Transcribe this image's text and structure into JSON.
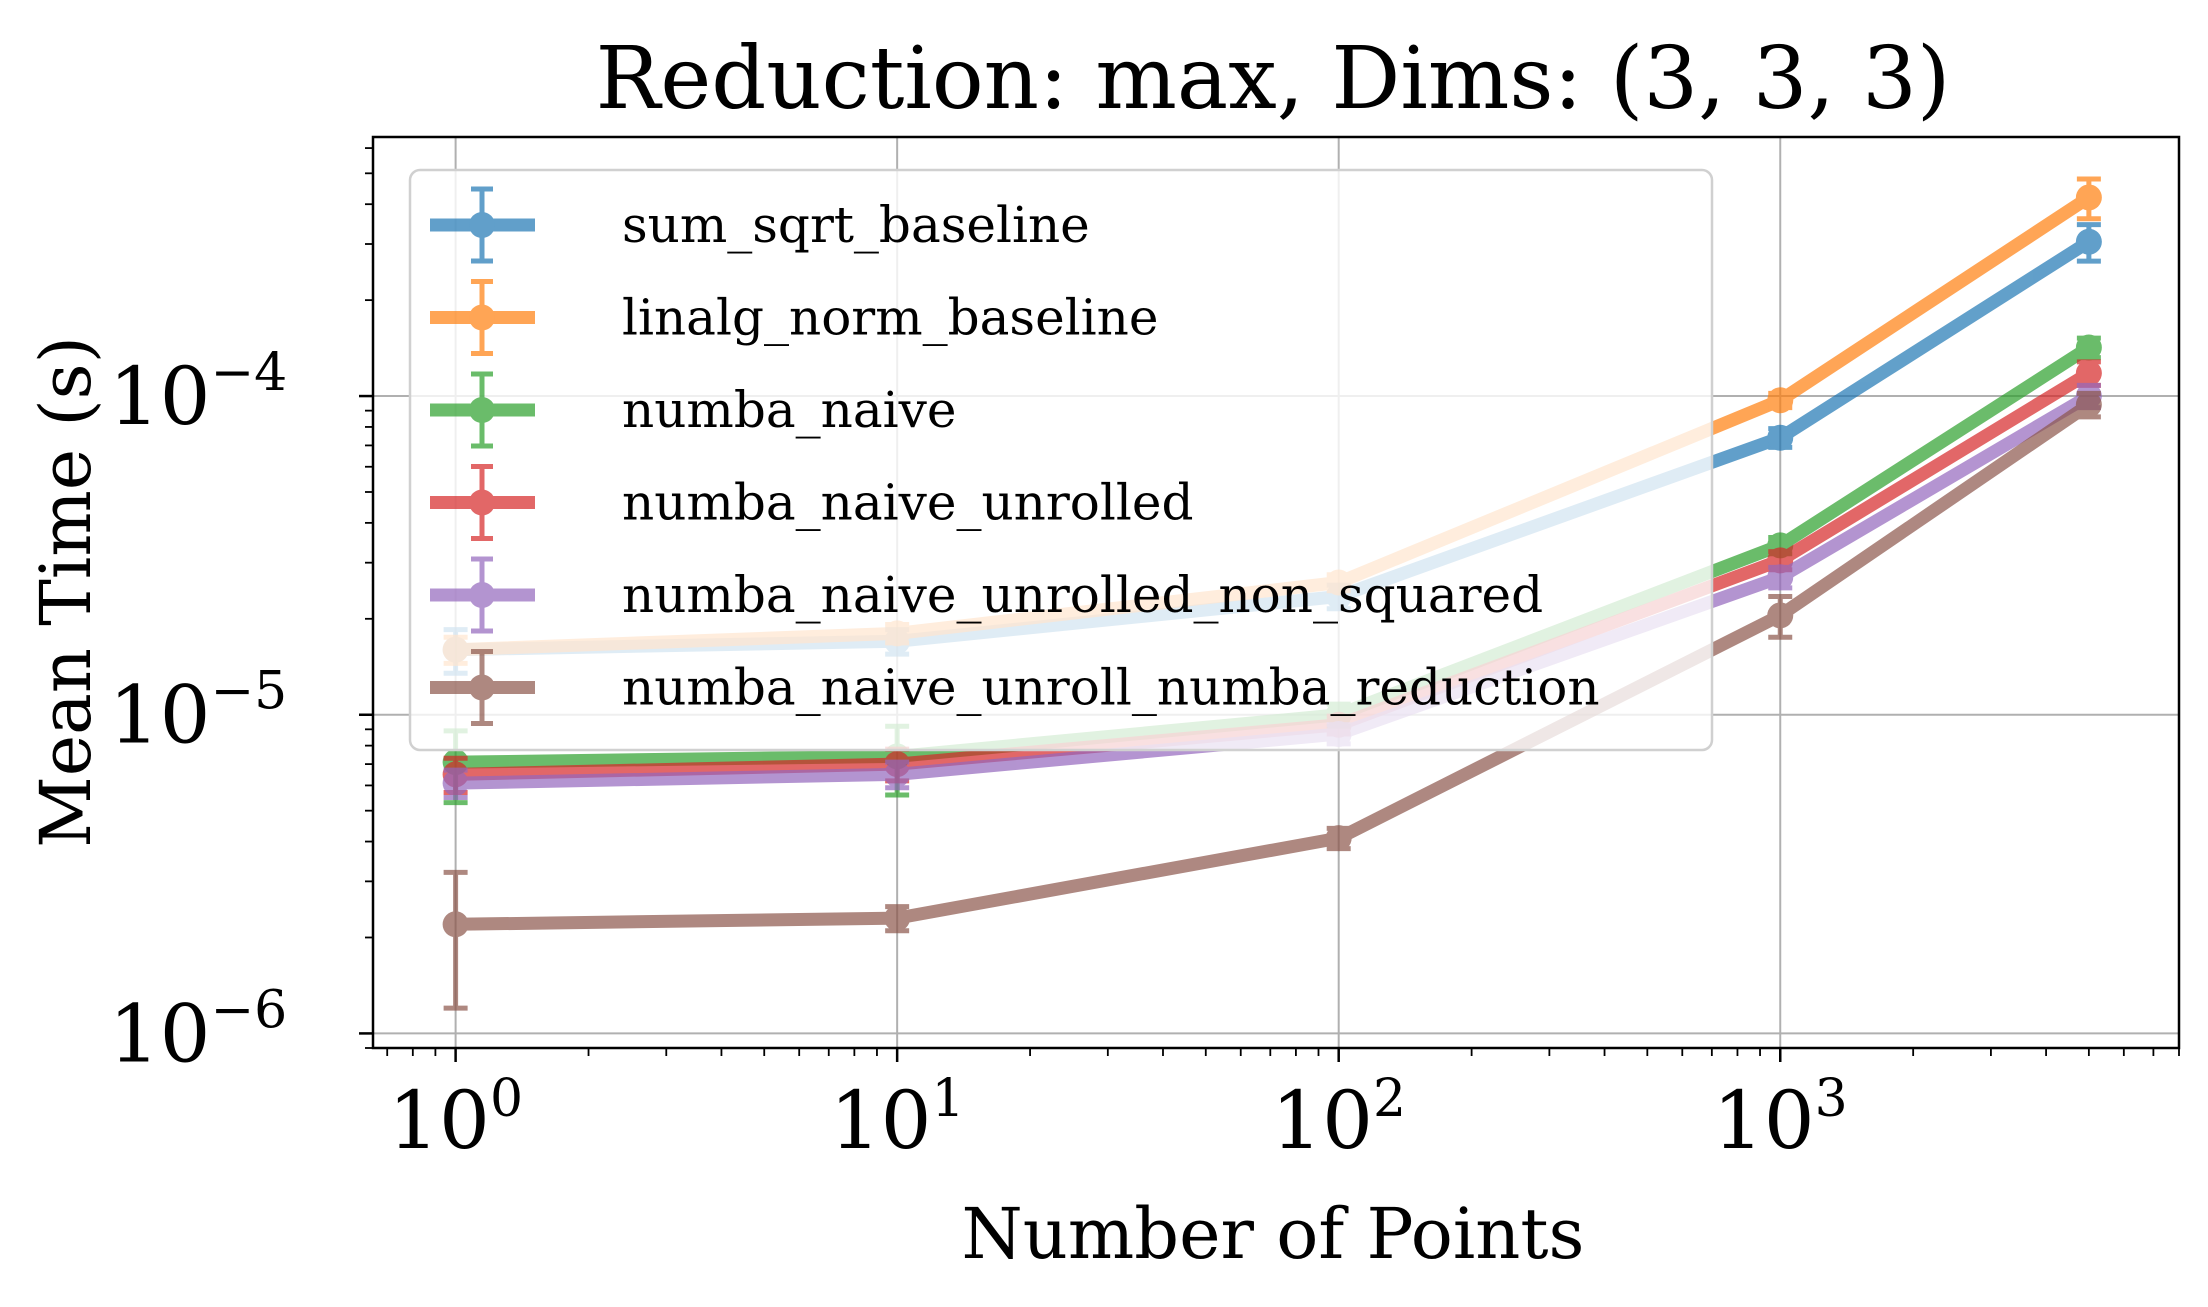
{
  "chart_data": {
    "type": "line",
    "title": "Reduction: max, Dims: (3, 3, 3)",
    "xlabel": "Number of Points",
    "ylabel": "Mean Time (s)",
    "xscale": "log",
    "yscale": "log",
    "xlim": [
      0.65,
      8000
    ],
    "ylim": [
      9e-07,
      0.00065
    ],
    "grid": true,
    "legend_position": "top-left",
    "x_ticks": [
      {
        "value": 1,
        "base": "10",
        "exp": "0"
      },
      {
        "value": 10,
        "base": "10",
        "exp": "1"
      },
      {
        "value": 100,
        "base": "10",
        "exp": "2"
      },
      {
        "value": 1000,
        "base": "10",
        "exp": "3"
      }
    ],
    "y_ticks": [
      {
        "value": 1e-06,
        "base": "10",
        "exp": "−6"
      },
      {
        "value": 1e-05,
        "base": "10",
        "exp": "−5"
      },
      {
        "value": 0.0001,
        "base": "10",
        "exp": "−4"
      }
    ],
    "x": [
      1,
      10,
      100,
      1000,
      5000
    ],
    "series": [
      {
        "name": "sum_sqrt_baseline",
        "color": "#1f77b4",
        "values": [
          1.6e-05,
          1.7e-05,
          2.35e-05,
          7.4e-05,
          0.000305
        ],
        "errors": [
          2.5e-06,
          1.5e-06,
          2e-06,
          5e-06,
          4e-05
        ]
      },
      {
        "name": "linalg_norm_baseline",
        "color": "#ff7f0e",
        "values": [
          1.6e-05,
          1.8e-05,
          2.6e-05,
          9.7e-05,
          0.00042
        ],
        "errors": [
          1.5e-06,
          1.2e-06,
          1.5e-06,
          5e-06,
          6e-05
        ]
      },
      {
        "name": "numba_naive",
        "color": "#2ca02c",
        "values": [
          7.1e-06,
          7.4e-06,
          1e-05,
          3.4e-05,
          0.000142
        ],
        "errors": [
          1.8e-06,
          1.8e-06,
          8e-07,
          2e-06,
          1e-05
        ]
      },
      {
        "name": "numba_naive_unrolled",
        "color": "#d62728",
        "values": [
          6.5e-06,
          7e-06,
          9.3e-06,
          3.05e-05,
          0.000118
        ],
        "errors": [
          8e-07,
          8e-07,
          6e-07,
          2e-06,
          1e-05
        ]
      },
      {
        "name": "numba_naive_unrolled_non_squared",
        "color": "#9467bd",
        "values": [
          6.1e-06,
          6.5e-06,
          8.7e-06,
          2.7e-05,
          0.0001
        ],
        "errors": [
          6e-07,
          6e-07,
          6e-07,
          2e-06,
          8e-06
        ]
      },
      {
        "name": "numba_naive_unroll_numba_reduction",
        "color": "#8c564b",
        "values": [
          2.2e-06,
          2.3e-06,
          4.1e-06,
          2.05e-05,
          9.4e-05
        ],
        "errors": [
          1e-06,
          2e-07,
          3e-07,
          3e-06,
          8e-06
        ]
      }
    ]
  }
}
